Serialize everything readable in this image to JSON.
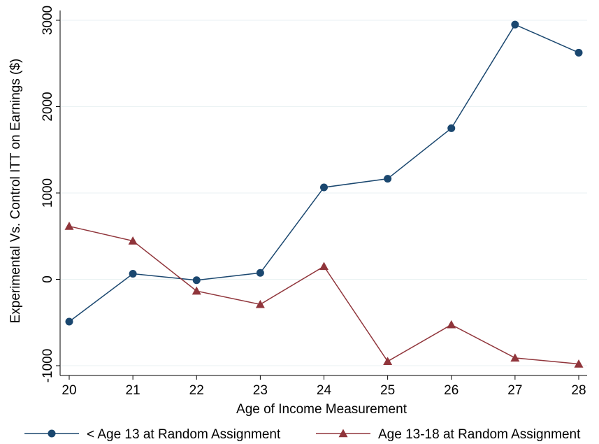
{
  "chart_data": {
    "type": "line",
    "xlabel": "Age of Income Measurement",
    "ylabel": "Experimental Vs. Control ITT on Earnings ($)",
    "x": [
      20,
      21,
      22,
      23,
      24,
      25,
      26,
      27,
      28
    ],
    "xlim": [
      20,
      28
    ],
    "ylim": [
      -1100,
      3100
    ],
    "yticks": [
      -1000,
      0,
      1000,
      2000,
      3000
    ],
    "grid": true,
    "legend_position": "bottom",
    "series": [
      {
        "name": "< Age 13 at Random Assignment",
        "color": "#1a476f",
        "marker": "circle",
        "values": [
          -490,
          65,
          -10,
          75,
          1065,
          1165,
          1750,
          2950,
          2625
        ]
      },
      {
        "name": "Age 13-18 at Random Assignment",
        "color": "#90353b",
        "marker": "triangle",
        "values": [
          615,
          445,
          -135,
          -290,
          150,
          -950,
          -525,
          -910,
          -980
        ]
      }
    ]
  }
}
